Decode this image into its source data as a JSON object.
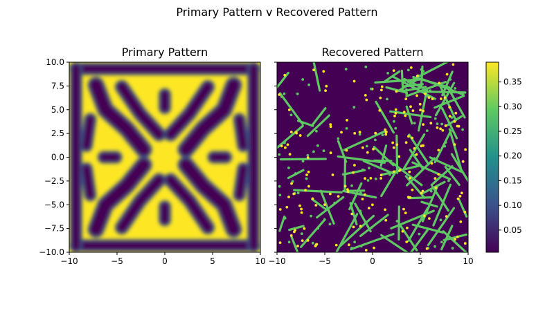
{
  "figure": {
    "suptitle": "Primary Pattern v Recovered Pattern"
  },
  "chart_data": [
    {
      "type": "heatmap",
      "title": "Primary Pattern",
      "xlim": [
        -10,
        10
      ],
      "ylim": [
        -10,
        10
      ],
      "xticks": [
        -10,
        -5,
        0,
        5,
        10
      ],
      "yticks": [
        -10.0,
        -7.5,
        -5.0,
        -2.5,
        0.0,
        2.5,
        5.0,
        7.5,
        10.0
      ],
      "xtick_labels": [
        "−10",
        "−5",
        "0",
        "5",
        "10"
      ],
      "ytick_labels": [
        "−10.0",
        "−7.5",
        "−5.0",
        "−2.5",
        "0.0",
        "2.5",
        "5.0",
        "7.5",
        "10.0"
      ],
      "pattern": "symmetric labyrinth (four-fold symmetric stripes)",
      "colormap": "viridis",
      "value_range": [
        0.005,
        0.39
      ]
    },
    {
      "type": "heatmap",
      "title": "Recovered Pattern",
      "xlim": [
        -10,
        10
      ],
      "ylim": [
        -10,
        10
      ],
      "xticks": [
        -10,
        -5,
        0,
        5,
        10
      ],
      "xtick_labels": [
        "−10",
        "−5",
        "0",
        "5",
        "10"
      ],
      "pattern": "fine stripes and spots",
      "colormap": "viridis",
      "value_range": [
        0.005,
        0.39
      ]
    }
  ],
  "colorbar": {
    "ticks": [
      0.05,
      0.1,
      0.15,
      0.2,
      0.25,
      0.3,
      0.35
    ],
    "tick_labels": [
      "0.05",
      "0.10",
      "0.15",
      "0.20",
      "0.25",
      "0.30",
      "0.35"
    ],
    "range": [
      0.005,
      0.39
    ],
    "colormap": "viridis"
  },
  "colors": {
    "low": "#440154",
    "mid_low": "#3b528b",
    "mid": "#21918c",
    "mid_high": "#5ec962",
    "high": "#fde725"
  }
}
